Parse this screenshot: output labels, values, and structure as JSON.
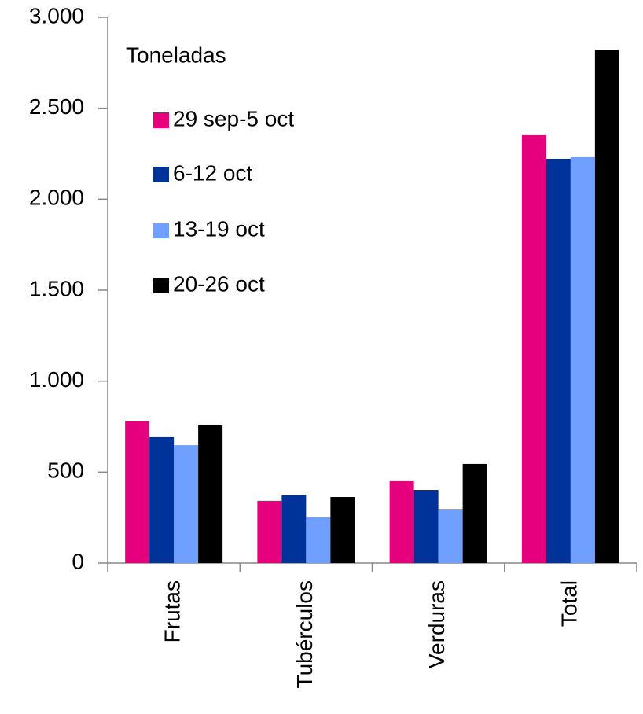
{
  "chart_data": {
    "type": "bar",
    "annotation": "Toneladas",
    "categories": [
      "Frutas",
      "Tubérculos",
      "Verduras",
      "Total"
    ],
    "series": [
      {
        "name": "29 sep-5 oct",
        "color": "#e6007e",
        "values": [
          782,
          342,
          450,
          2352
        ]
      },
      {
        "name": "6-12 oct",
        "color": "#003399",
        "values": [
          692,
          376,
          402,
          2222
        ]
      },
      {
        "name": "13-19 oct",
        "color": "#6f9fff",
        "values": [
          648,
          255,
          298,
          2231
        ]
      },
      {
        "name": "20-26 oct",
        "color": "#000000",
        "values": [
          761,
          363,
          545,
          2819
        ]
      }
    ],
    "ylim": [
      0,
      3000
    ],
    "yticks": [
      0,
      500,
      {
        "value": 1000,
        "label": "1.000"
      },
      {
        "value": 1500,
        "label": "1.500"
      },
      {
        "value": 2000,
        "label": "2.000"
      },
      {
        "value": 2500,
        "label": "2.500"
      },
      {
        "value": 3000,
        "label": "3.000"
      }
    ],
    "legend": "upper left",
    "grid": false
  }
}
